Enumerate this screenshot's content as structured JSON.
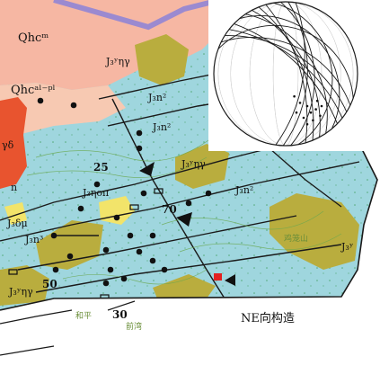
{
  "map": {
    "unit_labels": [
      {
        "id": "qhcm",
        "text": "Qhcᵐ"
      },
      {
        "id": "qhc-al-pl",
        "text": "Qhcᵃˡ⁻ᵖˡ"
      },
      {
        "id": "j3-eta-gamma-top",
        "text": "J₃ʸηγ"
      },
      {
        "id": "j3-n2-a",
        "text": "J₃n²"
      },
      {
        "id": "j3-n2-b",
        "text": "J₃n²"
      },
      {
        "id": "j3-eta-gamma-mid",
        "text": "J₃ʸηγ"
      },
      {
        "id": "j3-n2-c",
        "text": "J₃n²"
      },
      {
        "id": "j3-eta-o-pi",
        "text": "J₃ηοπ"
      },
      {
        "id": "j3-delta-mu",
        "text": "J₃δμ"
      },
      {
        "id": "j3-n3",
        "text": "J₃n³"
      },
      {
        "id": "j3-eta-gamma-bl",
        "text": "J₃ʸηγ"
      },
      {
        "id": "j3y-right",
        "text": "J₃ʸ"
      },
      {
        "id": "gamma-delta",
        "text": "γδ"
      },
      {
        "id": "n-left",
        "text": "n"
      }
    ],
    "dip_values": [
      "25",
      "70",
      "50",
      "30"
    ],
    "place_names": [
      "鸡笼山",
      "和平",
      "前湾"
    ]
  },
  "stereonet": {
    "great_circle_count": 14,
    "pole_count": 12
  },
  "caption": "NE向构造"
}
